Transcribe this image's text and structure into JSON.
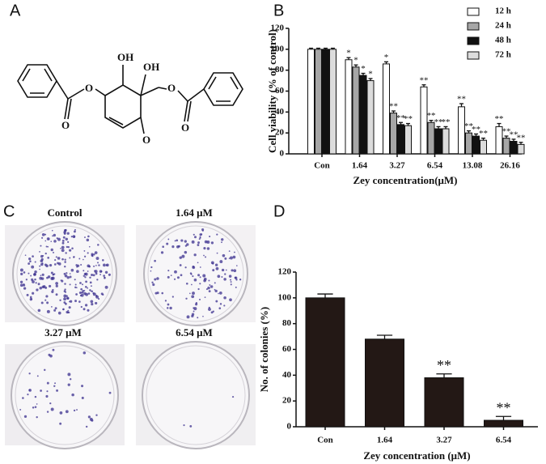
{
  "figure": {
    "panel_labels": [
      "A",
      "B",
      "C",
      "D"
    ],
    "plate_labels": [
      "Control",
      "1.64 μM",
      "3.27 μM",
      "6.54 μM"
    ],
    "structure_labels": [
      "OH",
      "OH",
      "O",
      "O",
      "O",
      "O",
      "O"
    ]
  },
  "chart_data": [
    {
      "type": "bar",
      "ylabel": "Cell viability (% of control)",
      "xlabel": "Zey concentration(μM)",
      "categories": [
        "Con",
        "1.64",
        "3.27",
        "6.54",
        "13.08",
        "26.16"
      ],
      "ylim": [
        0,
        120
      ],
      "yticks": [
        0,
        20,
        40,
        60,
        80,
        100,
        120
      ],
      "series": [
        {
          "name": "12 h",
          "color": "#ffffff",
          "values": [
            100,
            90,
            86,
            64,
            45,
            26
          ],
          "errors": [
            1,
            2,
            2,
            2,
            3,
            3
          ],
          "significance": [
            null,
            "*",
            "*",
            "**",
            "**",
            "**"
          ]
        },
        {
          "name": "24 h",
          "color": "#a6a6a6",
          "values": [
            100,
            83,
            39,
            30,
            20,
            15
          ],
          "errors": [
            1,
            2,
            2,
            2,
            2,
            2
          ],
          "significance": [
            null,
            "*",
            "**",
            "**",
            "**",
            "**"
          ]
        },
        {
          "name": "48 h",
          "color": "#111111",
          "values": [
            100,
            75,
            28,
            24,
            17,
            12
          ],
          "errors": [
            1,
            2,
            2,
            2,
            2,
            2
          ],
          "significance": [
            null,
            "*",
            "**",
            "**",
            "**",
            "**"
          ]
        },
        {
          "name": "72 h",
          "color": "#dcdcdc",
          "values": [
            100,
            70,
            27,
            24,
            13,
            9
          ],
          "errors": [
            1,
            2,
            2,
            2,
            2,
            2
          ],
          "significance": [
            null,
            "*",
            "**",
            "**",
            "**",
            "**"
          ]
        }
      ]
    },
    {
      "type": "bar",
      "ylabel": "No. of colonies (%)",
      "xlabel": "Zey concentration (μM)",
      "categories": [
        "Con",
        "1.64",
        "3.27",
        "6.54"
      ],
      "ylim": [
        0,
        120
      ],
      "yticks": [
        0,
        20,
        40,
        60,
        80,
        100,
        120
      ],
      "color": "#231815",
      "values": [
        100,
        68,
        38,
        5
      ],
      "errors": [
        3,
        3,
        3,
        3
      ],
      "significance": [
        null,
        null,
        "**",
        "**"
      ]
    }
  ]
}
